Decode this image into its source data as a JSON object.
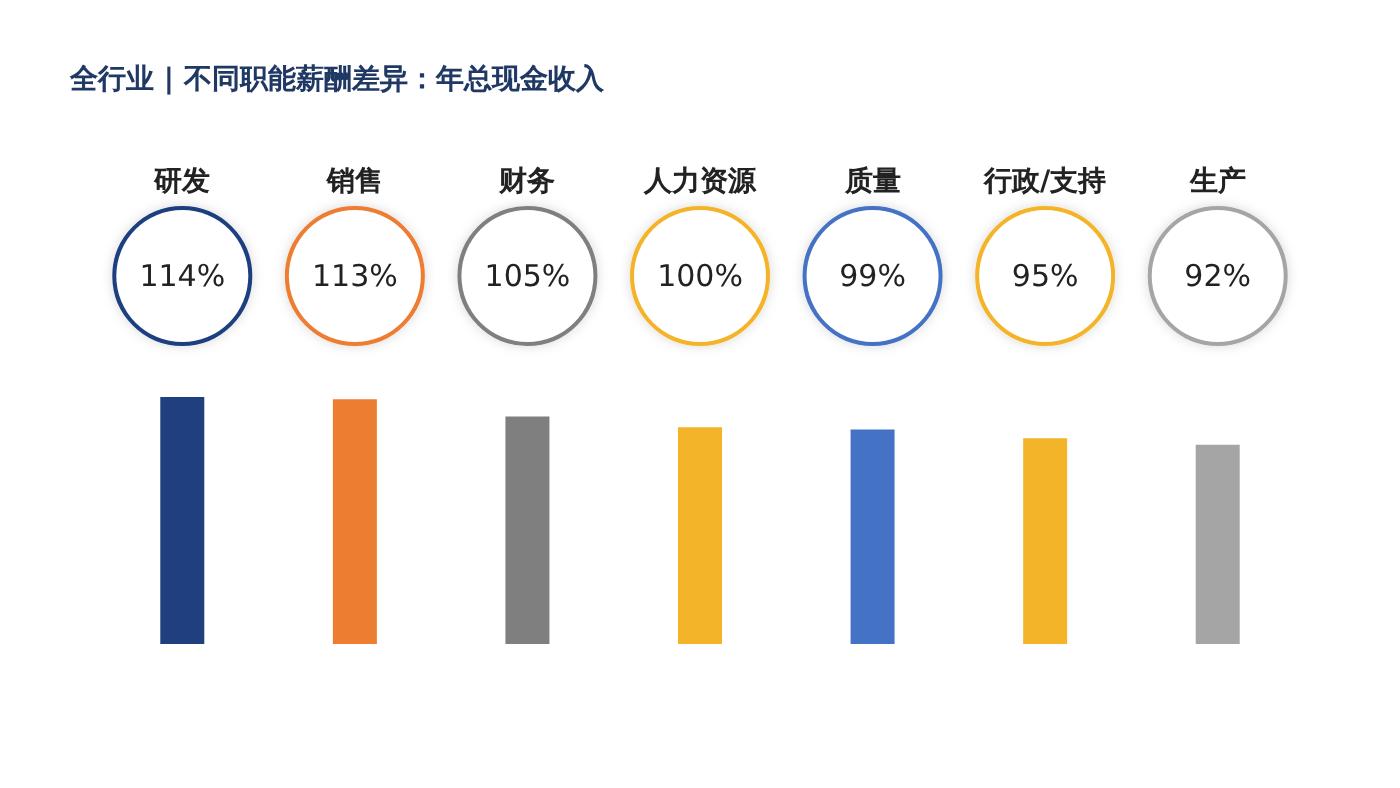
{
  "chart_data": {
    "type": "bar",
    "title": "全行业 | 不同职能薪酬差异：年总现金收入",
    "categories": [
      "研发",
      "销售",
      "财务",
      "人力资源",
      "质量",
      "行政/支持",
      "生产"
    ],
    "values": [
      114,
      113,
      105,
      100,
      99,
      95,
      92
    ],
    "value_labels": [
      "114%",
      "113%",
      "105%",
      "100%",
      "99%",
      "95%",
      "92%"
    ],
    "colors": [
      "#1f3f7f",
      "#ed7d31",
      "#7f7f7f",
      "#f4b42a",
      "#4472c4",
      "#f4b42a",
      "#a5a5a5"
    ]
  }
}
